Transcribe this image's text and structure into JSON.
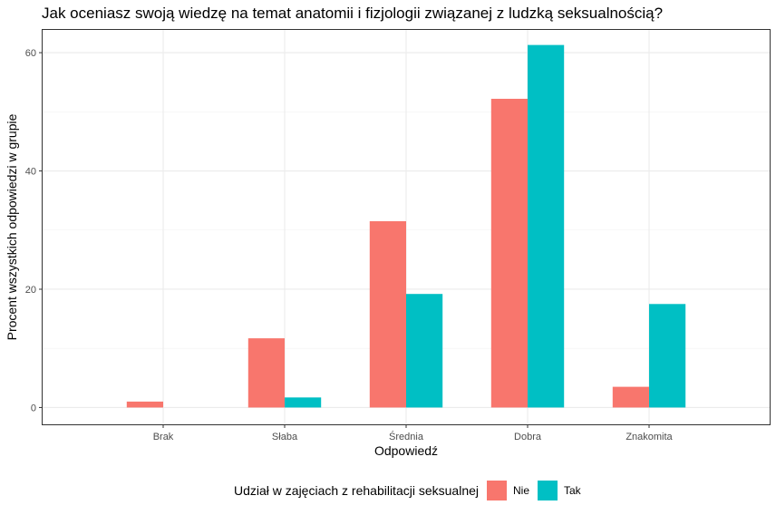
{
  "chart_data": {
    "type": "bar",
    "title": "Jak oceniasz swoją wiedzę na temat anatomii i fizjologii związanej z ludzką seksualnością?",
    "xlabel": "Odpowiedź",
    "ylabel": "Procent wszystkich odpowiedzi w grupie",
    "categories": [
      "Brak",
      "Słaba",
      "Średnia",
      "Dobra",
      "Znakomita"
    ],
    "ylim": [
      -3,
      64
    ],
    "yticks": [
      0,
      20,
      40,
      60
    ],
    "yticks_labels": [
      "0",
      "20",
      "40",
      "60"
    ],
    "grid": true,
    "legend": {
      "title": "Udział w zajęciach z rehabilitacji seksualnej",
      "position": "bottom"
    },
    "series": [
      {
        "name": "Nie",
        "color": "#F8766D",
        "values": [
          1.0,
          11.7,
          31.5,
          52.2,
          3.5
        ]
      },
      {
        "name": "Tak",
        "color": "#00BFC4",
        "values": [
          0.0,
          1.7,
          19.2,
          61.3,
          17.5
        ]
      }
    ]
  }
}
